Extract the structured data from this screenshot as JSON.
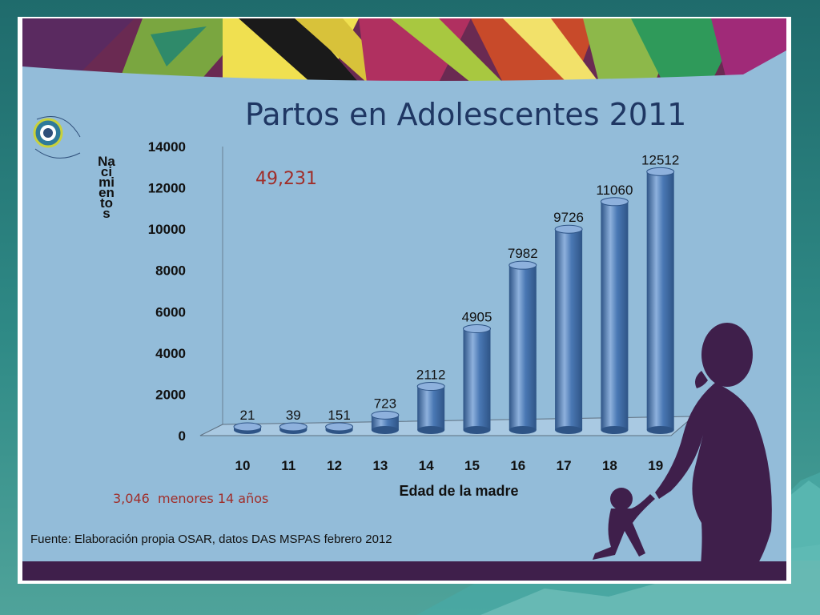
{
  "slide": {
    "title": "Partos en Adolescentes 2011",
    "total_label": "49,231",
    "under14_label": "3,046  menores 14 años",
    "source": "Fuente: Elaboración propia OSAR, datos DAS MSPAS febrero 2012"
  },
  "colors": {
    "bar": "#4a78b4",
    "bar_dark": "#2e5486",
    "bar_light": "#8eb1dd",
    "background": "#93bcd9",
    "title": "#1f3763",
    "highlight": "#a02e2a",
    "silhouette": "#3f1f4b"
  },
  "chart_data": {
    "type": "bar",
    "style": "3d-cylinder",
    "title": "",
    "xlabel": "Edad de la madre",
    "ylabel": "Nacimientos",
    "categories": [
      "10",
      "11",
      "12",
      "13",
      "14",
      "15",
      "16",
      "17",
      "18",
      "19"
    ],
    "values": [
      21,
      39,
      151,
      723,
      2112,
      4905,
      7982,
      9726,
      11060,
      12512
    ],
    "data_labels": [
      "21",
      "39",
      "151",
      "723",
      "2112",
      "4905",
      "7982",
      "9726",
      "11060",
      "12512"
    ],
    "ylim": [
      0,
      14000
    ],
    "yticks": [
      0,
      2000,
      4000,
      6000,
      8000,
      10000,
      12000,
      14000
    ],
    "ytick_labels": [
      "0",
      "2000",
      "4000",
      "6000",
      "8000",
      "10000",
      "12000",
      "14000"
    ],
    "grid": false,
    "legend": "none"
  }
}
